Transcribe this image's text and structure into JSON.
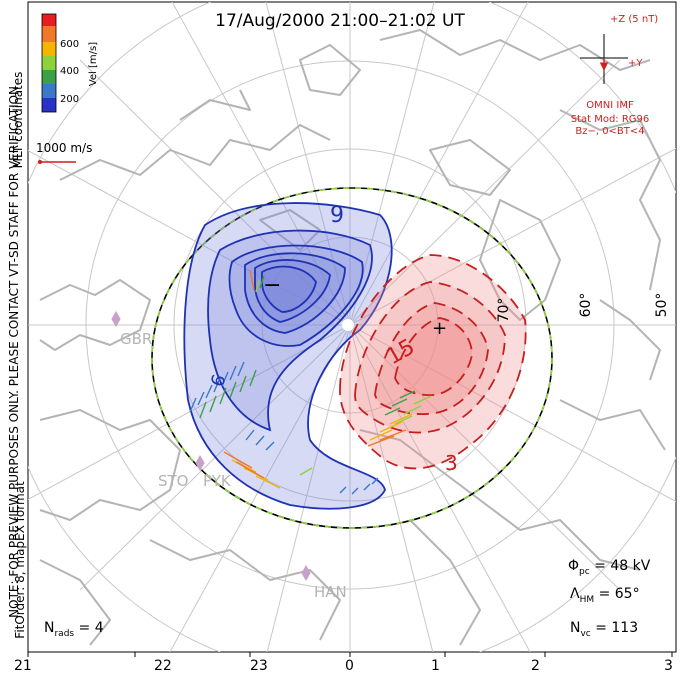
{
  "title": "17/Aug/2000 21:00–21:02 UT",
  "coord_label": "MLT coordinates",
  "side_note": "NOTE: FOR PREVIEW PURPOSES ONLY. PLEASE CONTACT VT-SD STAFF FOR VERIFICATION.",
  "fit_label": "FitOrder: 8, mapEX format",
  "colorbar": {
    "title": "Vel [m/s]",
    "ticks": [
      "600",
      "400",
      "200"
    ],
    "colors": [
      "#e61e1e",
      "#f07828",
      "#f5b400",
      "#8cd23c",
      "#3ca046",
      "#3a78c8",
      "#2832c8"
    ]
  },
  "scale_vector": "1000 m/s",
  "imf": {
    "axis_z": "+Z (5 nT)",
    "axis_y": "+Y",
    "source": "OMNI IMF",
    "stat_mod": "Stat Mod: RG96",
    "condition": "Bz−, 0<BT<4"
  },
  "contour_labels": {
    "neg_label": "9",
    "pos_label": "15",
    "pos_outer_label": "3",
    "neg_inner_label": "6",
    "minus_mark": "−",
    "plus_mark": "+"
  },
  "lat_labels": [
    "70°",
    "60°",
    "50°"
  ],
  "stations": [
    "GBR",
    "STO",
    "PYK",
    "HAN"
  ],
  "stats": {
    "phi_pc": "Φpc = 48 kV",
    "lambda_hm": "ΛHM = 65°",
    "n_vc": "Nvc = 113",
    "n_rads": "Nrads = 4"
  },
  "mlt_ticks": [
    "21",
    "22",
    "23",
    "0",
    "1",
    "2",
    "3"
  ],
  "colors": {
    "negative_contour": "#1e32b4",
    "negative_fill": "#7884dc",
    "positive_contour": "#c81e1e",
    "positive_fill": "#f08c8c",
    "coastline": "#b4b4b4",
    "grid": "#c8c8c8",
    "hmb_dash": "#8cd23c",
    "annotation_red": "#d21e1e"
  }
}
